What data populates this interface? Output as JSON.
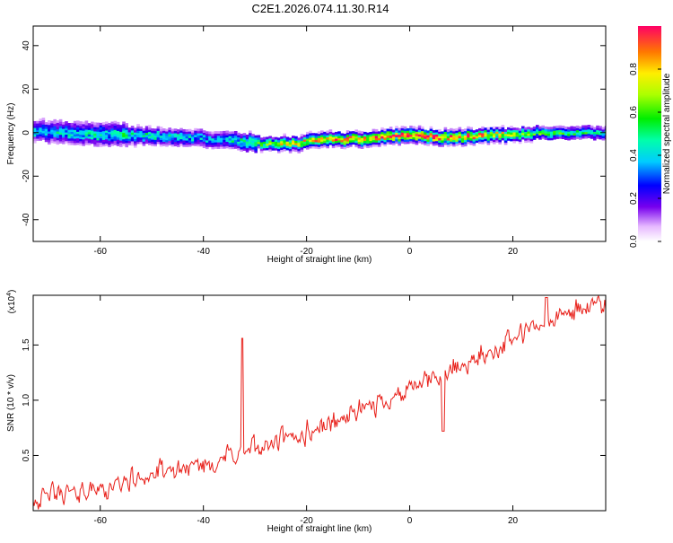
{
  "title": "C2E1.2026.074.11.30.R14",
  "colors": {
    "frame": "#000000",
    "line": "#e8201a",
    "background": "#ffffff"
  },
  "chart_data": [
    {
      "type": "heatmap",
      "name": "spectrogram",
      "xlabel": "Height of straight line (km)",
      "ylabel": "Frequency (Hz)",
      "xlim": [
        -73,
        38
      ],
      "ylim": [
        -50,
        49
      ],
      "xticks": [
        -60,
        -40,
        -20,
        0,
        20
      ],
      "yticks": [
        -40,
        -20,
        0,
        20,
        40
      ],
      "ridge": {
        "x": [
          -73,
          -65,
          -55,
          -45,
          -38,
          -33,
          -28,
          -22,
          -18,
          -10,
          -6,
          0,
          5,
          10,
          15,
          20,
          25,
          30,
          37
        ],
        "center_hz": [
          1,
          0,
          -1,
          -2,
          -3,
          -4,
          -5,
          -5,
          -3,
          -3,
          -2,
          -1,
          -2,
          -2,
          -1,
          -1,
          0,
          0,
          0
        ],
        "amplitude": [
          0.3,
          0.35,
          0.4,
          0.35,
          0.3,
          0.4,
          0.6,
          0.7,
          0.75,
          0.8,
          0.85,
          0.9,
          0.9,
          0.85,
          0.75,
          0.6,
          0.5,
          0.45,
          0.4
        ]
      },
      "colorbar": {
        "label": "Normalized spectral amplitude",
        "range": [
          0,
          1
        ],
        "ticks": [
          0.0,
          0.2,
          0.4,
          0.6,
          0.8
        ],
        "tick_labels": [
          "0.0",
          "0.2",
          "0.4",
          "0.6",
          "0.8"
        ]
      }
    },
    {
      "type": "line",
      "name": "snr",
      "xlabel": "Height of straight line (km)",
      "ylabel": "SNR (10 * v/v)",
      "multiplier": "(x10",
      "multiplier_exp": "4",
      "xlim": [
        -73,
        38
      ],
      "ylim": [
        0.0,
        1.95
      ],
      "xticks": [
        -60,
        -40,
        -20,
        0,
        20
      ],
      "yticks": [
        0.5,
        1.0,
        1.5
      ],
      "ytick_labels": [
        "0.5",
        "1.0",
        "1.5"
      ],
      "trend": {
        "x": [
          -73,
          -60,
          -50,
          -40,
          -30,
          -20,
          -10,
          0,
          10,
          20,
          30,
          38
        ],
        "y": [
          0.12,
          0.2,
          0.32,
          0.42,
          0.55,
          0.7,
          0.9,
          1.1,
          1.3,
          1.55,
          1.78,
          1.88
        ]
      },
      "noise_amplitude": 0.22,
      "spikes": [
        {
          "x": -32.5,
          "y": 1.56
        },
        {
          "x": 6.5,
          "y": 0.72
        },
        {
          "x": 26.5,
          "y": 1.93
        }
      ]
    }
  ]
}
